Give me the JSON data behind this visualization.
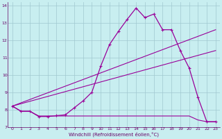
{
  "xlabel": "Windchill (Refroidissement éolien,°C)",
  "bg_color": "#c8eef0",
  "grid_color": "#a0c8d0",
  "line_color": "#990099",
  "xlim": [
    -0.5,
    23.5
  ],
  "ylim": [
    7.0,
    14.2
  ],
  "xticks": [
    0,
    1,
    2,
    3,
    4,
    5,
    6,
    7,
    8,
    9,
    10,
    11,
    12,
    13,
    14,
    15,
    16,
    17,
    18,
    19,
    20,
    21,
    22,
    23
  ],
  "yticks": [
    7,
    8,
    9,
    10,
    11,
    12,
    13,
    14
  ],
  "series1_x": [
    0,
    1,
    2,
    3,
    4,
    5,
    6,
    7,
    8,
    9,
    10,
    11,
    12,
    13,
    14,
    15,
    16,
    17,
    18,
    19,
    20,
    21,
    22,
    23
  ],
  "series1_y": [
    8.2,
    7.9,
    7.9,
    7.6,
    7.6,
    7.65,
    7.7,
    8.1,
    8.5,
    9.0,
    10.5,
    11.75,
    12.5,
    13.2,
    13.85,
    13.3,
    13.5,
    12.6,
    12.6,
    11.4,
    10.4,
    8.7,
    7.3,
    7.3
  ],
  "series2_x": [
    0,
    23
  ],
  "series2_y": [
    8.2,
    12.6
  ],
  "series3_x": [
    0,
    1,
    2,
    3,
    4,
    5,
    6,
    7,
    8,
    9,
    10,
    11,
    12,
    13,
    14,
    15,
    16,
    17,
    18,
    19,
    20,
    21,
    22,
    23
  ],
  "series3_y": [
    8.2,
    7.9,
    7.9,
    7.63,
    7.63,
    7.63,
    7.63,
    7.63,
    7.63,
    7.63,
    7.63,
    7.63,
    7.63,
    7.63,
    7.63,
    7.63,
    7.63,
    7.63,
    7.63,
    7.63,
    7.63,
    7.4,
    7.3,
    7.3
  ],
  "series4_x": [
    0,
    23
  ],
  "series4_y": [
    8.2,
    11.4
  ],
  "xlabel_fontsize": 5.0,
  "tick_fontsize": 4.5
}
